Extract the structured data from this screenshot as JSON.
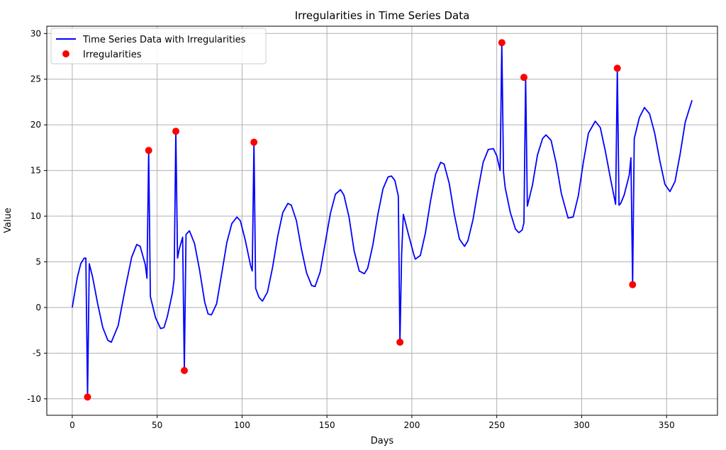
{
  "chart_data": {
    "type": "line",
    "title": "Irregularities in Time Series Data",
    "xlabel": "Days",
    "ylabel": "Value",
    "xlim": [
      -15,
      380
    ],
    "ylim": [
      -11.8,
      30.8
    ],
    "xticks": [
      0,
      50,
      100,
      150,
      200,
      250,
      300,
      350
    ],
    "yticks": [
      -10,
      -5,
      0,
      5,
      10,
      15,
      20,
      25,
      30
    ],
    "grid": true,
    "legend_position": "upper-left",
    "colors": {
      "line": "#0000ff",
      "irregularities": "#ff0000"
    },
    "series": [
      {
        "name": "Time Series Data with Irregularities",
        "kind": "line",
        "x": [
          0,
          3,
          5,
          7,
          8,
          9,
          10,
          12,
          15,
          18,
          21,
          23,
          27,
          31,
          35,
          38,
          40,
          43,
          44,
          45,
          46,
          49,
          52,
          54,
          56,
          59,
          60,
          61,
          62,
          63,
          65,
          66,
          67,
          69,
          72,
          75,
          78,
          80,
          82,
          85,
          88,
          91,
          94,
          97,
          99,
          102,
          105,
          106,
          107,
          108,
          110,
          112,
          115,
          118,
          121,
          124,
          127,
          129,
          132,
          135,
          138,
          141,
          143,
          146,
          149,
          152,
          155,
          158,
          160,
          163,
          166,
          169,
          172,
          174,
          177,
          180,
          183,
          186,
          188,
          190,
          192,
          193,
          194,
          195,
          198,
          201,
          202,
          205,
          208,
          211,
          214,
          217,
          219,
          222,
          225,
          228,
          231,
          233,
          236,
          239,
          242,
          245,
          248,
          250,
          252,
          253,
          254,
          255,
          258,
          261,
          263,
          265,
          266,
          267,
          268,
          271,
          274,
          277,
          279,
          282,
          285,
          288,
          292,
          295,
          298,
          301,
          304,
          308,
          311,
          314,
          317,
          320,
          321,
          322,
          323,
          325,
          328,
          329,
          330,
          331,
          334,
          337,
          340,
          343,
          346,
          349,
          352,
          355,
          358,
          361,
          365
        ],
        "y": [
          0,
          3.3,
          4.8,
          5.4,
          5.4,
          -9.8,
          4.8,
          3.3,
          0.4,
          -2.2,
          -3.6,
          -3.8,
          -2,
          1.9,
          5.5,
          6.9,
          6.7,
          4.7,
          3.2,
          17.2,
          1.2,
          -1.1,
          -2.3,
          -2.2,
          -1,
          1.6,
          3.1,
          19.3,
          5.4,
          6.4,
          7.7,
          -6.9,
          8,
          8.4,
          7,
          4.1,
          0.6,
          -0.7,
          -0.8,
          0.4,
          3.7,
          7.1,
          9.2,
          9.9,
          9.5,
          7.3,
          4.6,
          4,
          18.1,
          2.1,
          1.1,
          0.7,
          1.7,
          4.4,
          7.8,
          10.4,
          11.4,
          11.2,
          9.5,
          6.4,
          3.8,
          2.4,
          2.3,
          3.9,
          7.1,
          10.3,
          12.4,
          12.9,
          12.3,
          9.9,
          6.2,
          4,
          3.7,
          4.3,
          6.8,
          10.2,
          13,
          14.3,
          14.4,
          13.9,
          12.2,
          -3.8,
          5.8,
          10.2,
          8,
          5.9,
          5.3,
          5.7,
          8.2,
          11.7,
          14.6,
          15.9,
          15.7,
          13.6,
          10.2,
          7.5,
          6.7,
          7.3,
          9.6,
          12.9,
          15.9,
          17.3,
          17.4,
          16.6,
          15,
          29,
          14.8,
          13.1,
          10.4,
          8.6,
          8.2,
          8.5,
          9.3,
          25.2,
          11.1,
          13.4,
          16.7,
          18.5,
          18.9,
          18.3,
          15.8,
          12.5,
          9.8,
          9.9,
          12.2,
          15.9,
          19.1,
          20.4,
          19.7,
          17.1,
          14.1,
          11.3,
          26.2,
          11.2,
          11.4,
          12.3,
          14.5,
          16.4,
          2.5,
          18.5,
          20.8,
          21.9,
          21.2,
          19.1,
          16.1,
          13.5,
          12.7,
          13.8,
          16.8,
          20.3,
          22.7
        ]
      },
      {
        "name": "Irregularities",
        "kind": "scatter",
        "x": [
          9,
          45,
          61,
          66,
          107,
          193,
          253,
          266,
          321,
          330
        ],
        "y": [
          -9.8,
          17.2,
          19.3,
          -6.9,
          18.1,
          -3.8,
          29,
          25.2,
          26.2,
          2.5
        ]
      }
    ]
  }
}
